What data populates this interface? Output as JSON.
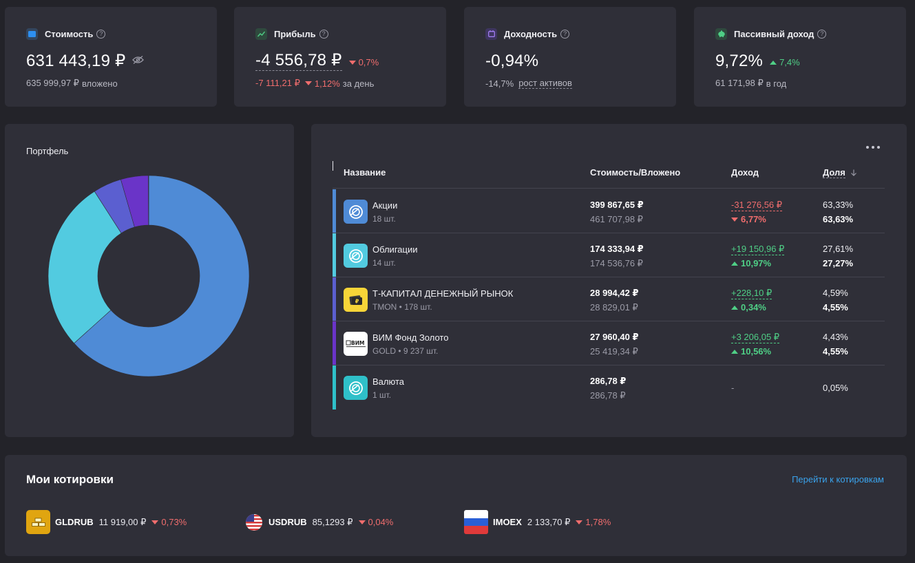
{
  "colors": {
    "background": "#232329",
    "card": "#2f2f38",
    "negative": "#f06d6d",
    "positive": "#4fcf86",
    "link": "#3aa3ec"
  },
  "stats": {
    "value": {
      "label": "Стоимость",
      "icon": "wallet-icon",
      "amount": "631 443,19 ₽",
      "sub_amount": "635 999,97 ₽",
      "sub_label": "вложено"
    },
    "profit": {
      "label": "Прибыль",
      "icon": "chart-line-icon",
      "amount": "-4 556,78 ₽",
      "change": "0,7%",
      "day_amount": "-7 111,21 ₽",
      "day_change": "1,12%",
      "day_label": "за день"
    },
    "yield": {
      "label": "Доходность",
      "icon": "calendar-icon",
      "amount": "-0,94%",
      "sub_amount": "-14,7%",
      "sub_label": "рост активов"
    },
    "passive": {
      "label": "Пассивный доход",
      "icon": "piggy-bank-icon",
      "amount": "9,72%",
      "change": "7,4%",
      "sub_amount": "61 171,98 ₽",
      "sub_label": "в год"
    }
  },
  "portfolio": {
    "title": "Портфель"
  },
  "chart_data": {
    "type": "pie",
    "donut": true,
    "categories": [
      "Акции",
      "Облигации",
      "Т-КАПИТАЛ ДЕНЕЖНЫЙ РЫНОК",
      "ВИМ Фонд Золото",
      "Валюта"
    ],
    "values": [
      63.33,
      27.61,
      4.59,
      4.43,
      0.05
    ],
    "colors": [
      "#4f8bd6",
      "#52cbe0",
      "#5b5fd0",
      "#6a34c8",
      "#2fc0c9"
    ]
  },
  "table": {
    "headers": {
      "name": "Название",
      "value": "Стоимость/Вложено",
      "income": "Доход",
      "share": "Доля"
    },
    "rows": [
      {
        "name": "Акции",
        "qty": "18 шт.",
        "value": "399 867,65 ₽",
        "invested": "461 707,98 ₽",
        "income": "-31 276,56 ₽",
        "income_pct": "6,77%",
        "direction": "down",
        "share": "63,33%",
        "target": "63,63%",
        "color": "#4f8bd6",
        "icon": "stocks-icon"
      },
      {
        "name": "Облигации",
        "qty": "14 шт.",
        "value": "174 333,94 ₽",
        "invested": "174 536,76 ₽",
        "income": "+19 150,96 ₽",
        "income_pct": "10,97%",
        "direction": "up",
        "share": "27,61%",
        "target": "27,27%",
        "color": "#52cbe0",
        "icon": "bonds-icon"
      },
      {
        "name": "Т-КАПИТАЛ ДЕНЕЖНЫЙ РЫНОК",
        "qty": "TMON • 178 шт.",
        "value": "28 994,42 ₽",
        "invested": "28 829,01 ₽",
        "income": "+228,10 ₽",
        "income_pct": "0,34%",
        "direction": "up",
        "share": "4,59%",
        "target": "4,55%",
        "color": "#5b5fd0",
        "icon": "tmon-fund-icon"
      },
      {
        "name": "ВИМ Фонд Золото",
        "qty": "GOLD • 9 237 шт.",
        "value": "27 960,40 ₽",
        "invested": "25 419,34 ₽",
        "income": "+3 206,05 ₽",
        "income_pct": "10,56%",
        "direction": "up",
        "share": "4,43%",
        "target": "4,55%",
        "color": "#6a34c8",
        "icon": "vim-fund-icon",
        "logo_text": "ВИМ"
      },
      {
        "name": "Валюта",
        "qty": "1 шт.",
        "value": "286,78 ₽",
        "invested": "286,78 ₽",
        "income": "-",
        "share": "0,05%",
        "color": "#2fc0c9",
        "icon": "currency-icon"
      }
    ]
  },
  "quotes": {
    "title": "Мои котировки",
    "link": "Перейти к котировкам",
    "items": [
      {
        "ticker": "GLDRUB",
        "price": "11 919,00 ₽",
        "change": "0,73%",
        "icon": "gold-bars-icon"
      },
      {
        "ticker": "USDRUB",
        "price": "85,1293 ₽",
        "change": "0,04%",
        "icon": "us-flag-icon"
      },
      {
        "ticker": "IMOEX",
        "price": "2 133,70 ₽",
        "change": "1,78%",
        "icon": "russia-flag-icon"
      }
    ]
  }
}
